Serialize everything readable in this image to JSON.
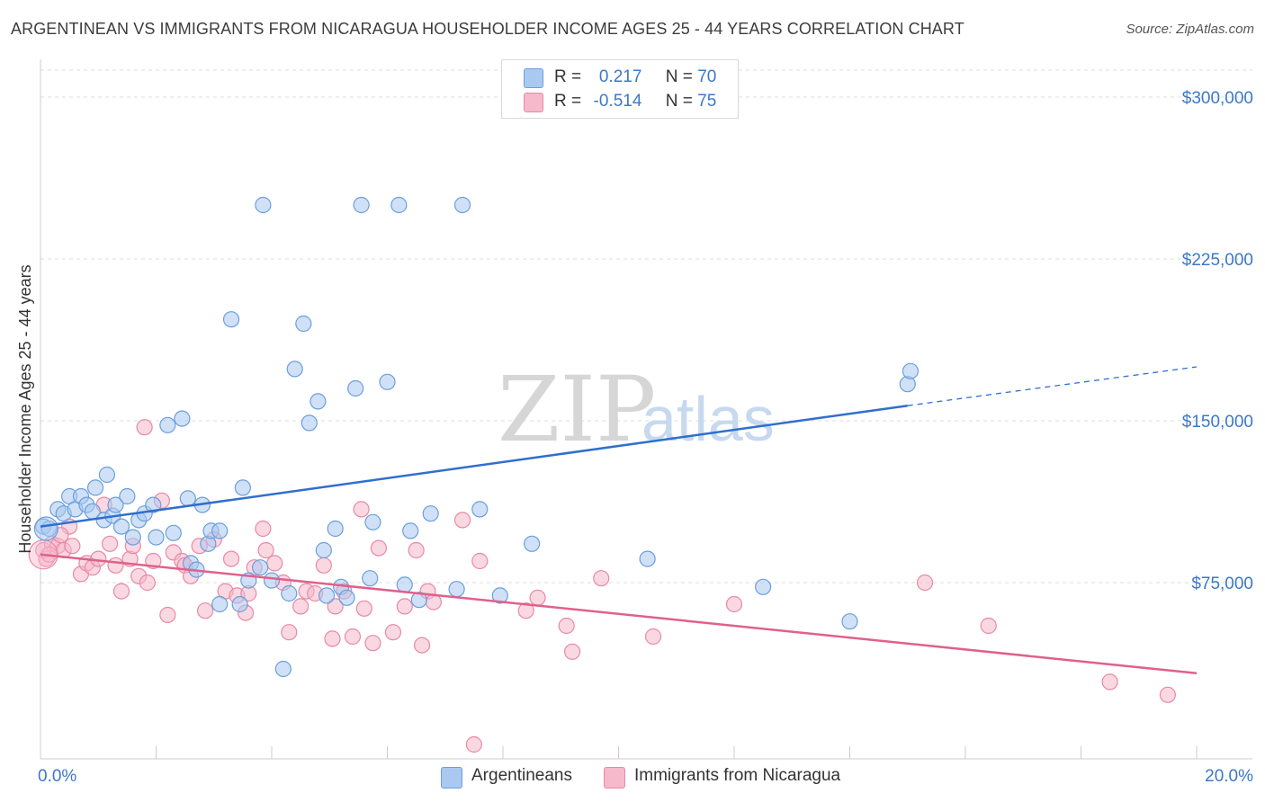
{
  "title": "ARGENTINEAN VS IMMIGRANTS FROM NICARAGUA HOUSEHOLDER INCOME AGES 25 - 44 YEARS CORRELATION CHART",
  "source": "Source: ZipAtlas.com",
  "watermark": {
    "zip": "ZIP",
    "atlas": "atlas"
  },
  "legend": {
    "rows": [
      {
        "r_label": "R =",
        "r_value": "0.217",
        "n_label": "N =",
        "n_value": "70",
        "color": "#a9c9f0"
      },
      {
        "r_label": "R =",
        "r_value": "-0.514",
        "n_label": "N =",
        "n_value": "75",
        "color": "#f6b8cb"
      }
    ]
  },
  "bottom_legend": [
    "Argentineans",
    "Immigrants from Nicaragua"
  ],
  "colors": {
    "blue_fill": "#a9c9f0",
    "blue_stroke": "#6a9fdc",
    "blue_line": "#2f6fce",
    "pink_fill": "#f6b8cb",
    "pink_stroke": "#e889a6",
    "pink_line": "#e0608c",
    "tick_text": "#3b78c9",
    "grid": "#dddddd"
  },
  "chart_data": {
    "type": "scatter",
    "title": "ARGENTINEAN VS IMMIGRANTS FROM NICARAGUA HOUSEHOLDER INCOME AGES 25 - 44 YEARS CORRELATION CHART",
    "xlabel": "",
    "ylabel": "Householder Income Ages 25 - 44 years",
    "xlim": [
      0,
      20
    ],
    "ylim": [
      0,
      312500
    ],
    "x_tick_labels": [
      "0.0%",
      "20.0%"
    ],
    "y_ticks": [
      75000,
      150000,
      225000,
      300000
    ],
    "y_tick_labels": [
      "$75,000",
      "$150,000",
      "$225,000",
      "$300,000"
    ],
    "grid": true,
    "legend_position": "top-center",
    "series": [
      {
        "name": "Argentineans",
        "r": 0.217,
        "n": 70,
        "trend": {
          "x0": 0.0,
          "y0": 101000,
          "x1": 15.0,
          "y1": 157000,
          "dashed_to_x": 20.0,
          "dashed_to_y": 175000
        },
        "points": [
          [
            0.05,
            101000
          ],
          [
            0.15,
            100000
          ],
          [
            0.3,
            109000
          ],
          [
            0.4,
            107000
          ],
          [
            0.5,
            115000
          ],
          [
            0.6,
            109000
          ],
          [
            0.7,
            115000
          ],
          [
            0.8,
            111000
          ],
          [
            0.9,
            108000
          ],
          [
            0.95,
            119000
          ],
          [
            1.1,
            104000
          ],
          [
            1.15,
            125000
          ],
          [
            1.25,
            106000
          ],
          [
            1.3,
            111000
          ],
          [
            1.4,
            101000
          ],
          [
            1.5,
            115000
          ],
          [
            1.6,
            96000
          ],
          [
            1.7,
            104000
          ],
          [
            1.8,
            107000
          ],
          [
            1.95,
            111000
          ],
          [
            2.0,
            96000
          ],
          [
            2.2,
            148000
          ],
          [
            2.3,
            98000
          ],
          [
            2.45,
            151000
          ],
          [
            2.55,
            114000
          ],
          [
            2.6,
            84000
          ],
          [
            2.7,
            81000
          ],
          [
            2.8,
            111000
          ],
          [
            2.9,
            93000
          ],
          [
            2.95,
            99000
          ],
          [
            3.1,
            99000
          ],
          [
            3.1,
            65000
          ],
          [
            3.3,
            197000
          ],
          [
            3.45,
            65000
          ],
          [
            3.5,
            119000
          ],
          [
            3.6,
            76000
          ],
          [
            3.8,
            82000
          ],
          [
            3.85,
            250000
          ],
          [
            4.0,
            76000
          ],
          [
            4.2,
            35000
          ],
          [
            4.3,
            70000
          ],
          [
            4.4,
            174000
          ],
          [
            4.55,
            195000
          ],
          [
            4.65,
            149000
          ],
          [
            4.8,
            159000
          ],
          [
            4.9,
            90000
          ],
          [
            4.95,
            69000
          ],
          [
            5.1,
            100000
          ],
          [
            5.2,
            73000
          ],
          [
            5.3,
            68000
          ],
          [
            5.45,
            165000
          ],
          [
            5.55,
            250000
          ],
          [
            5.7,
            77000
          ],
          [
            5.75,
            103000
          ],
          [
            6.0,
            168000
          ],
          [
            6.2,
            250000
          ],
          [
            6.3,
            74000
          ],
          [
            6.4,
            99000
          ],
          [
            6.55,
            67000
          ],
          [
            6.75,
            107000
          ],
          [
            7.2,
            72000
          ],
          [
            7.3,
            250000
          ],
          [
            7.6,
            109000
          ],
          [
            7.95,
            69000
          ],
          [
            8.5,
            93000
          ],
          [
            10.5,
            86000
          ],
          [
            12.5,
            73000
          ],
          [
            14.0,
            57000
          ],
          [
            15.0,
            167000
          ],
          [
            15.05,
            173000
          ]
        ]
      },
      {
        "name": "Immigrants from Nicaragua",
        "r": -0.514,
        "n": 75,
        "trend": {
          "x0": 0.0,
          "y0": 88000,
          "x1": 20.0,
          "y1": 33000
        },
        "points": [
          [
            0.05,
            90000
          ],
          [
            0.1,
            86000
          ],
          [
            0.2,
            93000
          ],
          [
            0.3,
            92000
          ],
          [
            0.4,
            90000
          ],
          [
            0.5,
            101000
          ],
          [
            0.55,
            92000
          ],
          [
            0.7,
            79000
          ],
          [
            0.8,
            84000
          ],
          [
            0.9,
            82000
          ],
          [
            1.0,
            86000
          ],
          [
            1.1,
            111000
          ],
          [
            1.2,
            93000
          ],
          [
            1.3,
            83000
          ],
          [
            1.4,
            71000
          ],
          [
            1.55,
            86000
          ],
          [
            1.6,
            92000
          ],
          [
            1.7,
            78000
          ],
          [
            1.8,
            147000
          ],
          [
            1.85,
            75000
          ],
          [
            1.95,
            85000
          ],
          [
            2.1,
            113000
          ],
          [
            2.2,
            60000
          ],
          [
            2.3,
            89000
          ],
          [
            2.45,
            85000
          ],
          [
            2.5,
            83000
          ],
          [
            2.6,
            78000
          ],
          [
            2.75,
            92000
          ],
          [
            2.85,
            62000
          ],
          [
            3.0,
            95000
          ],
          [
            3.2,
            71000
          ],
          [
            3.3,
            86000
          ],
          [
            3.4,
            69000
          ],
          [
            3.55,
            61000
          ],
          [
            3.6,
            70000
          ],
          [
            3.7,
            82000
          ],
          [
            3.85,
            100000
          ],
          [
            3.9,
            90000
          ],
          [
            4.05,
            84000
          ],
          [
            4.2,
            75000
          ],
          [
            4.3,
            52000
          ],
          [
            4.5,
            64000
          ],
          [
            4.6,
            71000
          ],
          [
            4.75,
            70000
          ],
          [
            4.9,
            83000
          ],
          [
            5.05,
            49000
          ],
          [
            5.1,
            64000
          ],
          [
            5.25,
            71000
          ],
          [
            5.4,
            50000
          ],
          [
            5.55,
            109000
          ],
          [
            5.6,
            63000
          ],
          [
            5.75,
            47000
          ],
          [
            5.85,
            91000
          ],
          [
            6.1,
            52000
          ],
          [
            6.3,
            64000
          ],
          [
            6.5,
            90000
          ],
          [
            6.6,
            46000
          ],
          [
            6.7,
            71000
          ],
          [
            6.8,
            66000
          ],
          [
            7.3,
            104000
          ],
          [
            7.5,
            0
          ],
          [
            7.6,
            85000
          ],
          [
            8.4,
            62000
          ],
          [
            8.6,
            68000
          ],
          [
            9.1,
            55000
          ],
          [
            9.2,
            43000
          ],
          [
            9.7,
            77000
          ],
          [
            10.6,
            50000
          ],
          [
            12.0,
            65000
          ],
          [
            15.3,
            75000
          ],
          [
            16.4,
            55000
          ],
          [
            18.5,
            29000
          ],
          [
            19.5,
            23000
          ],
          [
            0.15,
            88000
          ],
          [
            0.35,
            97000
          ]
        ]
      }
    ]
  }
}
